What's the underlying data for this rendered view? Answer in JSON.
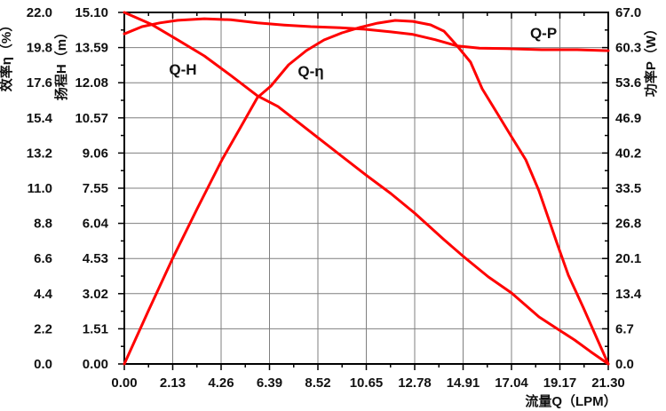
{
  "chart_data": {
    "type": "line",
    "title": "",
    "grid": true,
    "legend_position": "inline-annotations",
    "x_axis": {
      "label": "流量Q（LPM）",
      "range": [
        0,
        21.3
      ],
      "tick_labels": [
        "0.00",
        "2.13",
        "4.26",
        "6.39",
        "8.52",
        "10.65",
        "12.78",
        "14.91",
        "17.04",
        "19.17",
        "21.30"
      ]
    },
    "y_axes": [
      {
        "id": "efficiency",
        "label": "效率η（%）",
        "side": "left-outer",
        "range": [
          0,
          22.0
        ],
        "tick_labels": [
          "0.0",
          "2.2",
          "4.4",
          "6.6",
          "8.8",
          "11.0",
          "13.2",
          "15.4",
          "17.6",
          "19.8",
          "22.0"
        ]
      },
      {
        "id": "head",
        "label": "扬程H（m）",
        "side": "left-inner",
        "range": [
          0,
          15.1
        ],
        "tick_labels": [
          "0.00",
          "1.51",
          "3.02",
          "4.53",
          "6.04",
          "7.55",
          "9.06",
          "10.57",
          "12.08",
          "13.59",
          "15.10"
        ]
      },
      {
        "id": "power",
        "label": "功率P（W）",
        "side": "right",
        "range": [
          0,
          67.0
        ],
        "tick_labels": [
          "0.0",
          "6.7",
          "13.4",
          "20.1",
          "26.8",
          "33.5",
          "40.2",
          "46.9",
          "53.6",
          "60.3",
          "67.0"
        ]
      }
    ],
    "series": [
      {
        "name": "Q-H",
        "axis": "head",
        "color": "#ff0000",
        "points": [
          [
            0.0,
            15.1
          ],
          [
            1.17,
            14.6
          ],
          [
            2.35,
            13.92
          ],
          [
            3.52,
            13.23
          ],
          [
            4.69,
            12.39
          ],
          [
            5.86,
            11.52
          ],
          [
            6.76,
            11.06
          ],
          [
            8.52,
            9.72
          ],
          [
            10.63,
            8.12
          ],
          [
            11.73,
            7.32
          ],
          [
            12.78,
            6.48
          ],
          [
            14.07,
            5.34
          ],
          [
            14.97,
            4.58
          ],
          [
            16.02,
            3.74
          ],
          [
            17.04,
            3.05
          ],
          [
            18.25,
            2.02
          ],
          [
            19.15,
            1.45
          ],
          [
            19.82,
            1.03
          ],
          [
            20.52,
            0.53
          ],
          [
            21.3,
            0.0
          ]
        ]
      },
      {
        "name": "Q-η",
        "axis": "efficiency",
        "color": "#ff0000",
        "points": [
          [
            0.0,
            0.0
          ],
          [
            1.06,
            3.33
          ],
          [
            2.15,
            6.67
          ],
          [
            3.21,
            9.72
          ],
          [
            4.3,
            12.78
          ],
          [
            5.08,
            14.72
          ],
          [
            5.86,
            16.67
          ],
          [
            6.45,
            17.39
          ],
          [
            7.23,
            18.72
          ],
          [
            8.01,
            19.61
          ],
          [
            8.79,
            20.28
          ],
          [
            9.58,
            20.72
          ],
          [
            10.36,
            21.06
          ],
          [
            11.14,
            21.33
          ],
          [
            11.92,
            21.5
          ],
          [
            12.7,
            21.44
          ],
          [
            13.48,
            21.22
          ],
          [
            14.07,
            20.83
          ],
          [
            14.66,
            19.89
          ],
          [
            15.24,
            18.89
          ],
          [
            15.75,
            17.22
          ],
          [
            16.42,
            15.67
          ],
          [
            17.04,
            14.22
          ],
          [
            17.67,
            12.78
          ],
          [
            18.25,
            10.83
          ],
          [
            19.03,
            7.61
          ],
          [
            19.54,
            5.56
          ],
          [
            20.21,
            3.5
          ],
          [
            20.83,
            1.5
          ],
          [
            21.3,
            0.0
          ]
        ]
      },
      {
        "name": "Q-P",
        "axis": "power",
        "color": "#ff0000",
        "points": [
          [
            0.0,
            62.9
          ],
          [
            0.78,
            64.3
          ],
          [
            1.56,
            65.0
          ],
          [
            2.35,
            65.5
          ],
          [
            3.52,
            65.8
          ],
          [
            4.69,
            65.6
          ],
          [
            5.86,
            65.0
          ],
          [
            7.04,
            64.6
          ],
          [
            8.21,
            64.3
          ],
          [
            9.38,
            64.1
          ],
          [
            10.56,
            63.8
          ],
          [
            11.73,
            63.3
          ],
          [
            12.7,
            62.8
          ],
          [
            13.68,
            61.8
          ],
          [
            14.66,
            60.6
          ],
          [
            15.63,
            60.2
          ],
          [
            16.81,
            60.1
          ],
          [
            18.37,
            59.9
          ],
          [
            19.93,
            59.9
          ],
          [
            21.3,
            59.7
          ]
        ]
      }
    ],
    "annotations": [
      {
        "text": "Q-H",
        "q": 2.58,
        "frac_y": 0.162
      },
      {
        "text": "Q-η",
        "q": 8.21,
        "frac_y": 0.167
      },
      {
        "text": "Q-P",
        "q": 18.45,
        "frac_y": 0.058
      }
    ],
    "colors": {
      "curve": "#ff0000",
      "grid": "#7f7f7f",
      "axis": "#000000",
      "text": "#111111"
    }
  }
}
